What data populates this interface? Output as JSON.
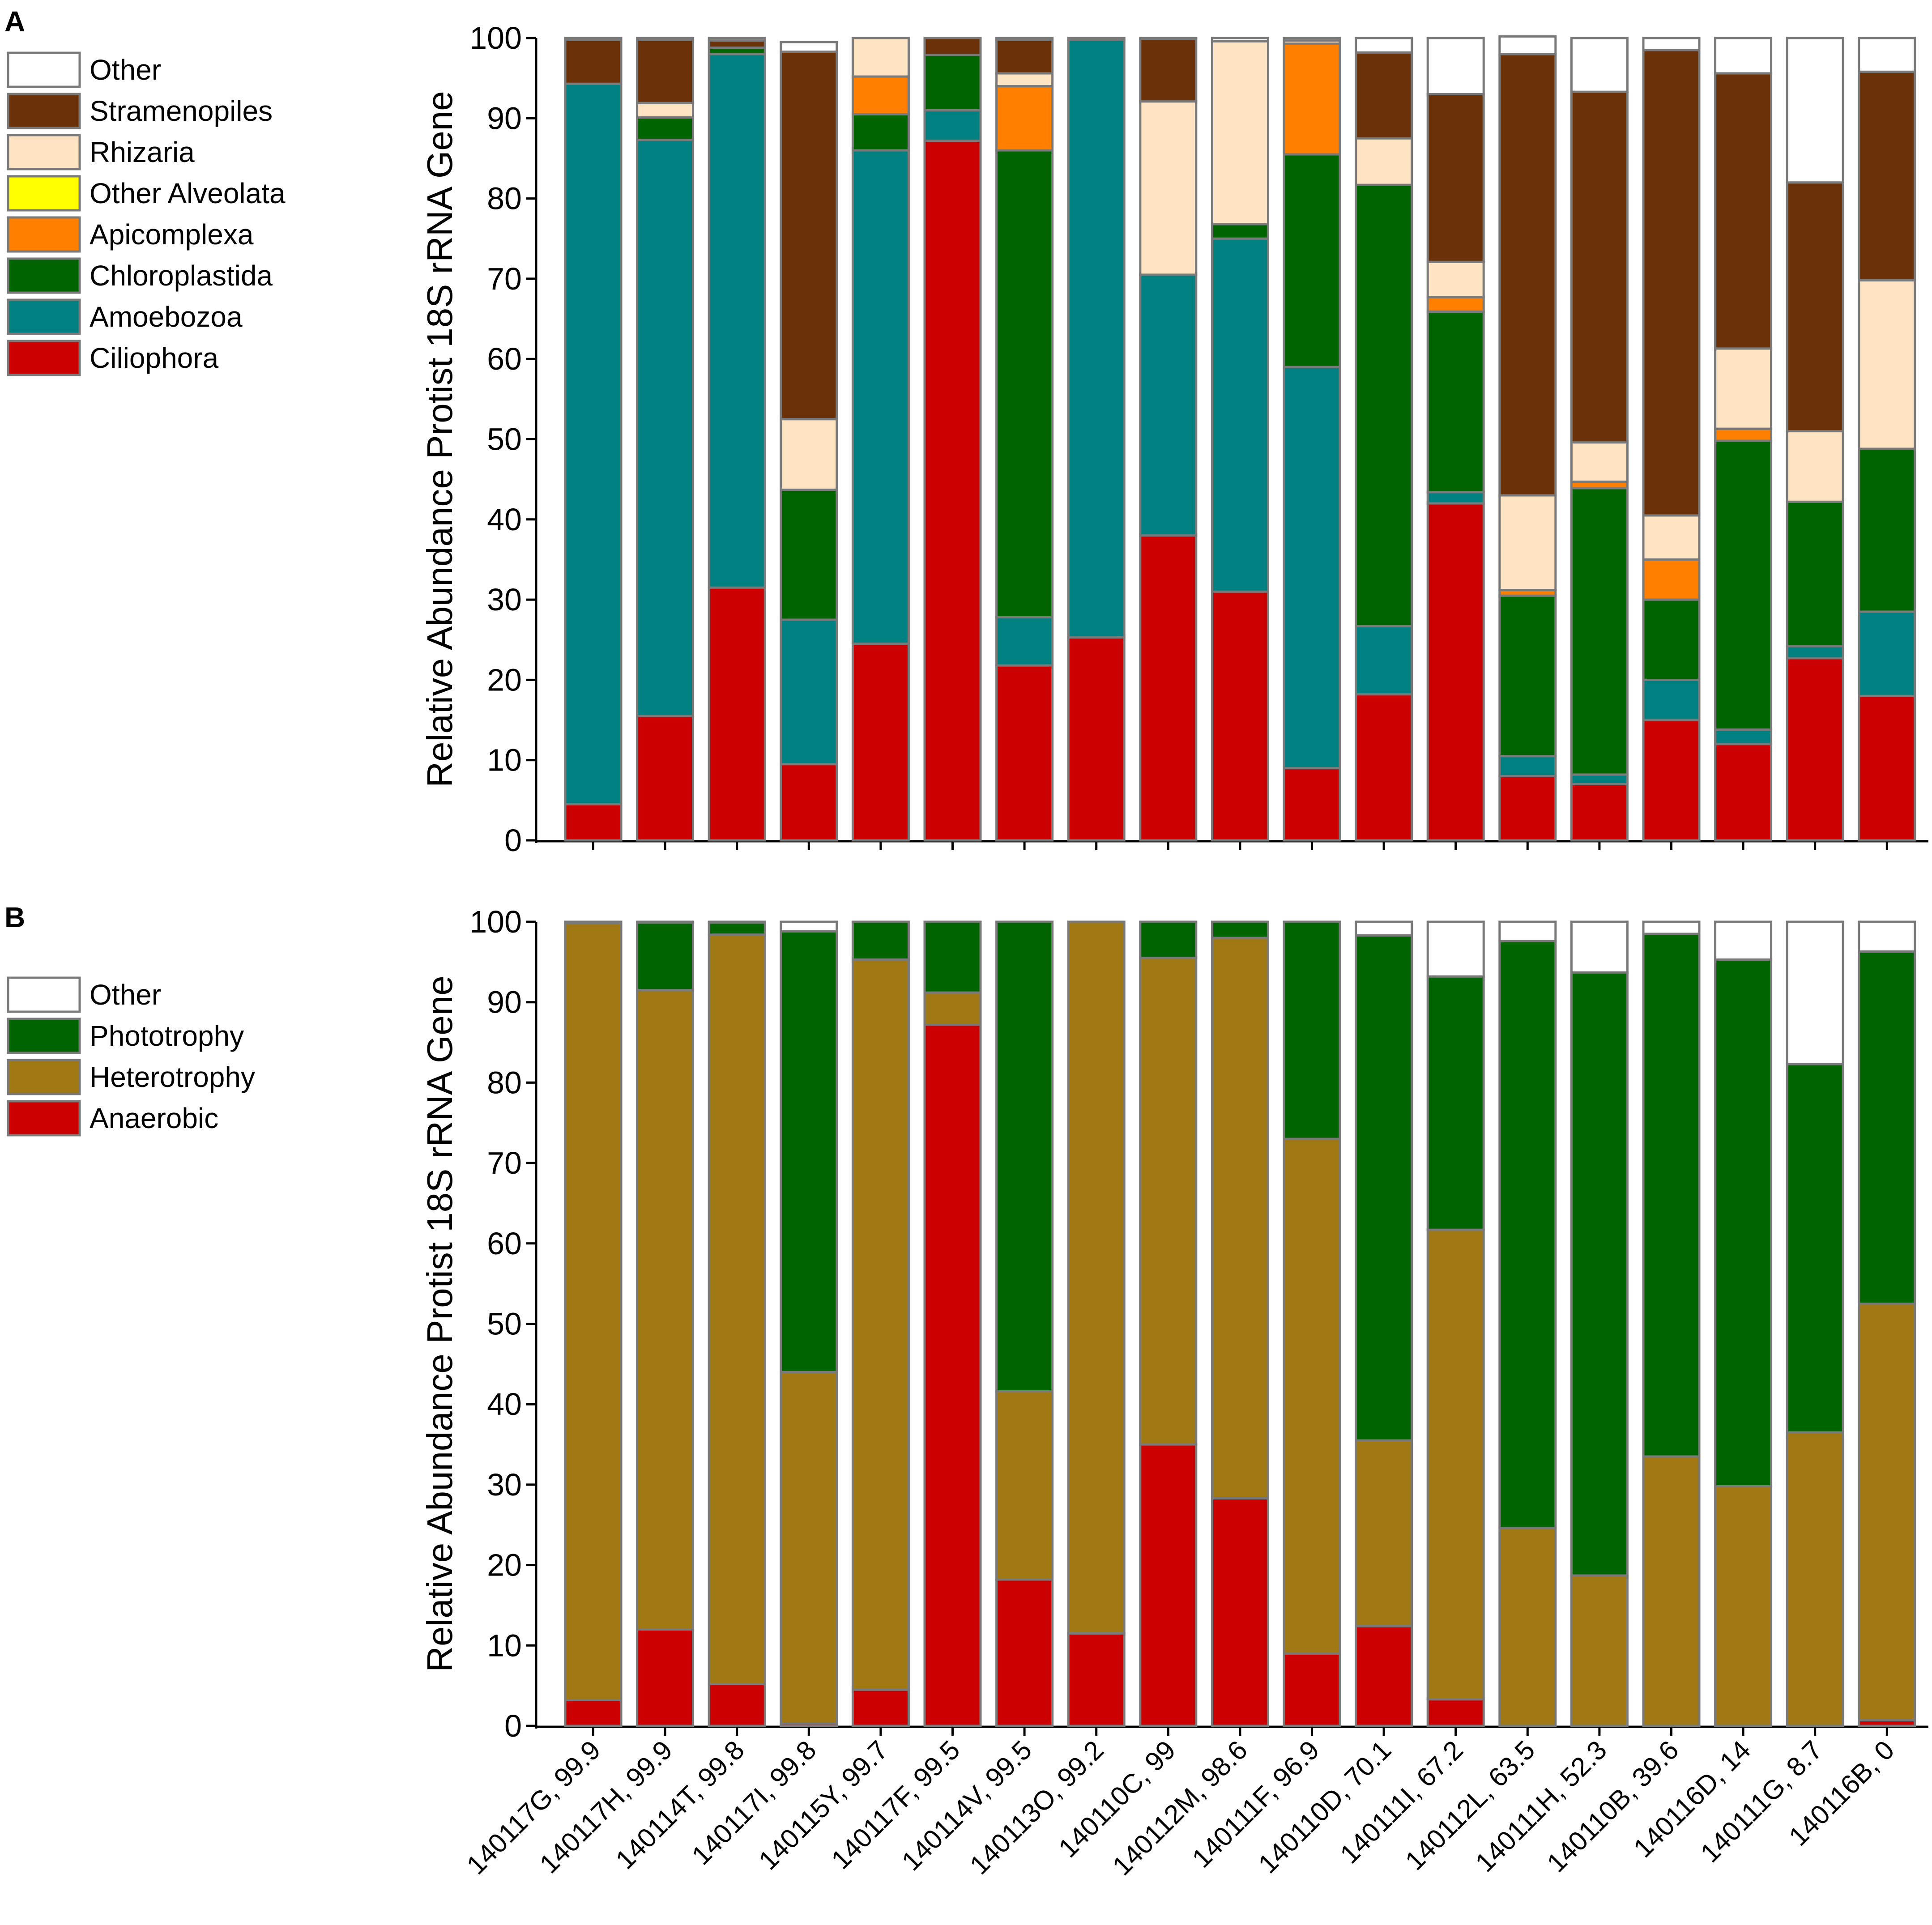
{
  "chart_data": [
    {
      "panel": "A",
      "type": "stacked-bar",
      "ylabel": "Relative Abundance Protist 18S rRNA Gene",
      "ylim": [
        0,
        100
      ],
      "yticks": [
        0,
        10,
        20,
        30,
        40,
        50,
        60,
        70,
        80,
        90,
        100
      ],
      "categories": [
        "140117G, 99.9",
        "140117H, 99.9",
        "140114T, 99.8",
        "140117I, 99.8",
        "140115Y, 99.7",
        "140117F, 99.5",
        "140114V, 99.5",
        "140113O, 99.2",
        "140110C, 99",
        "140112M, 98.6",
        "140111F, 96.9",
        "140110D, 70.1",
        "140111I, 67.2",
        "140112L, 63.5",
        "140111H, 52.3",
        "140110B, 39.6",
        "140116D, 14",
        "140111G, 8.7",
        "140116B, 0"
      ],
      "legend": [
        "Other",
        "Stramenopiles",
        "Rhizaria",
        "Other Alveolata",
        "Apicomplexa",
        "Chloroplastida",
        "Amoebozoa",
        "Ciliophora"
      ],
      "series": [
        {
          "name": "Ciliophora",
          "color": "#cc0000",
          "values": [
            4.5,
            15.5,
            31.5,
            9.5,
            24.5,
            87.2,
            21.8,
            25.3,
            38,
            31,
            9,
            18.2,
            42,
            8,
            7,
            15,
            12,
            22.7,
            18
          ]
        },
        {
          "name": "Amoebozoa",
          "color": "#008080",
          "values": [
            89.8,
            71.8,
            66.5,
            18,
            61.5,
            3.8,
            6,
            74.5,
            32.5,
            44,
            50,
            8.5,
            1.4,
            2.5,
            1.2,
            5,
            1.8,
            1.5,
            10.5
          ]
        },
        {
          "name": "Chloroplastida",
          "color": "#006400",
          "values": [
            0,
            2.8,
            0.8,
            16.2,
            4.5,
            6.9,
            58.2,
            0,
            0,
            1.8,
            26.5,
            55,
            22.5,
            20,
            35.7,
            10,
            36,
            18,
            20.3
          ]
        },
        {
          "name": "Other Alveolata",
          "color": "#ffff00",
          "values": [
            0,
            0,
            0,
            0,
            0,
            0,
            0,
            0,
            0,
            0,
            0,
            0,
            0,
            0,
            0,
            0,
            0,
            0,
            0
          ]
        },
        {
          "name": "Apicomplexa",
          "color": "#ff8000",
          "values": [
            0,
            0,
            0,
            0,
            4.7,
            0,
            8,
            0,
            0,
            0,
            13.8,
            0,
            1.8,
            0.7,
            0.8,
            5,
            1.5,
            0,
            0
          ]
        },
        {
          "name": "Rhizaria",
          "color": "#ffe4c4",
          "values": [
            0,
            1.8,
            0,
            8.8,
            4.8,
            0,
            1.6,
            0,
            21.6,
            22.8,
            0.4,
            5.8,
            4.4,
            11.8,
            4.9,
            5.5,
            10,
            8.8,
            21
          ]
        },
        {
          "name": "Stramenopiles",
          "color": "#6b3209",
          "values": [
            5.5,
            7.9,
            0.9,
            45.8,
            0,
            2.1,
            4.2,
            0,
            7.8,
            0,
            0,
            10.7,
            20.9,
            55,
            43.7,
            58,
            34.3,
            31,
            26
          ]
        },
        {
          "name": "Other",
          "color": "#ffffff",
          "values": [
            0.2,
            0.2,
            0.3,
            1.2,
            0,
            0,
            0.2,
            0.2,
            0.1,
            0.4,
            0.3,
            1.8,
            7,
            2.2,
            6.7,
            1.5,
            4.4,
            18,
            4.2
          ]
        }
      ]
    },
    {
      "panel": "B",
      "type": "stacked-bar",
      "ylabel": "Relative Abundance Protist 18S rRNA Gene",
      "ylim": [
        0,
        100
      ],
      "yticks": [
        0,
        10,
        20,
        30,
        40,
        50,
        60,
        70,
        80,
        90,
        100
      ],
      "categories": [
        "140117G, 99.9",
        "140117H, 99.9",
        "140114T, 99.8",
        "140117I, 99.8",
        "140115Y, 99.7",
        "140117F, 99.5",
        "140114V, 99.5",
        "140113O, 99.2",
        "140110C, 99",
        "140112M, 98.6",
        "140111F, 96.9",
        "140110D, 70.1",
        "140111I, 67.2",
        "140112L, 63.5",
        "140111H, 52.3",
        "140110B, 39.6",
        "140116D, 14",
        "140111G, 8.7",
        "140116B, 0"
      ],
      "legend": [
        "Other",
        "Phototrophy",
        "Heterotrophy",
        "Anaerobic"
      ],
      "series": [
        {
          "name": "Anaerobic",
          "color": "#cc0000",
          "values": [
            3.2,
            12,
            5.2,
            0.3,
            4.5,
            87.2,
            18.2,
            11.5,
            35,
            28.3,
            9,
            12.4,
            3.3,
            0,
            0,
            0,
            0,
            0,
            0.7
          ]
        },
        {
          "name": "Heterotrophy",
          "color": "#a07814",
          "values": [
            96.6,
            79.5,
            93.2,
            43.7,
            90.8,
            4,
            23.4,
            88.5,
            60.5,
            69.7,
            64,
            23.1,
            58.4,
            24.6,
            18.7,
            33.5,
            29.8,
            36.5,
            51.8
          ]
        },
        {
          "name": "Phototrophy",
          "color": "#006400",
          "values": [
            0,
            8.4,
            1.5,
            54.8,
            4.7,
            8.8,
            58.4,
            0,
            4.5,
            2,
            27,
            62.8,
            31.5,
            73,
            75,
            65,
            65.5,
            45.8,
            43.8
          ]
        },
        {
          "name": "Other",
          "color": "#ffffff",
          "values": [
            0.2,
            0.1,
            0.1,
            1.2,
            0,
            0,
            0,
            0,
            0,
            0,
            0,
            1.7,
            6.8,
            2.4,
            6.3,
            1.5,
            4.7,
            17.7,
            3.7
          ]
        }
      ]
    }
  ]
}
